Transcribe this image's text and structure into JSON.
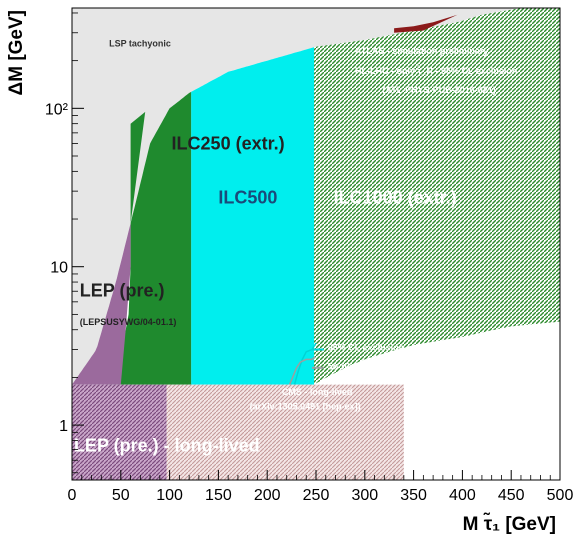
{
  "chart_data": {
    "type": "area",
    "title": "",
    "xlabel": "M τ̃₁ [GeV]",
    "ylabel": "ΔM [GeV]",
    "xscale": "linear",
    "yscale": "log",
    "xlim": [
      0,
      500
    ],
    "ylim": [
      0.45,
      430
    ],
    "x_ticks": [
      0,
      50,
      100,
      150,
      200,
      250,
      300,
      350,
      400,
      450,
      500
    ],
    "y_ticks": [
      {
        "value": 1,
        "label": "1"
      },
      {
        "value": 10,
        "label": "10"
      },
      {
        "value": 100,
        "label": "10²"
      }
    ],
    "kinematic_boundary": [
      [
        0,
        1.8
      ],
      [
        25,
        3.0
      ],
      [
        45,
        8
      ],
      [
        65,
        25
      ],
      [
        80,
        60
      ],
      [
        100,
        100
      ],
      [
        120,
        125
      ],
      [
        160,
        170
      ],
      [
        200,
        200
      ],
      [
        250,
        245
      ],
      [
        300,
        270
      ],
      [
        350,
        310
      ],
      [
        395,
        350
      ],
      [
        420,
        390
      ],
      [
        460,
        430
      ],
      [
        500,
        430
      ]
    ],
    "regions": [
      {
        "label": "LSP tachyonic",
        "sublabel": "",
        "color": "#e6e6e6",
        "pattern": "solid"
      },
      {
        "label": "LEP (pre.)",
        "sublabel": "(LEPSUSYWG/04-01.1)",
        "color": "#9b6a9d",
        "pattern": "solid",
        "x_right": [
          [
            1.8,
            50
          ],
          [
            4,
            55
          ],
          [
            10,
            60
          ],
          [
            40,
            60
          ],
          [
            80,
            60
          ],
          [
            95,
            75
          ]
        ]
      },
      {
        "label": "ILC250 (extr.)",
        "sublabel": "",
        "color": "#1f8a2e",
        "pattern": "solid",
        "x_right": 122,
        "x_left_edge": [
          [
            1.8,
            35
          ],
          [
            2.5,
            50
          ],
          [
            3.2,
            52
          ],
          [
            5,
            58
          ],
          [
            10,
            60
          ],
          [
            40,
            60
          ],
          [
            80,
            60
          ],
          [
            95,
            75
          ]
        ]
      },
      {
        "label": "ILC500",
        "sublabel": "",
        "color": "#00eeee",
        "pattern": "solid",
        "x_left": 122,
        "x_right": 248
      },
      {
        "label": "ILC1000 (extr.)",
        "sublabel": "",
        "color": "#2e8b2e",
        "pattern": "hatched",
        "x_left": 248,
        "x_right": 500,
        "lower_edge": [
          [
            248,
            1.8
          ],
          [
            300,
            2.6
          ],
          [
            350,
            3.2
          ],
          [
            400,
            3.6
          ],
          [
            450,
            4.2
          ],
          [
            500,
            4.5
          ]
        ]
      },
      {
        "label": "ATLAS - simulation preliminary",
        "sublabel": "",
        "color": "#c0392b",
        "pattern": "solid",
        "x_left": 330,
        "x_right": 395,
        "band": [
          [
            330,
            320
          ],
          [
            350,
            330
          ],
          [
            370,
            350
          ],
          [
            395,
            390
          ],
          [
            360,
            310
          ],
          [
            330,
            300
          ]
        ]
      },
      {
        "label": "LEP (pre.) - long-lived",
        "sublabel": "",
        "color": "#9b6a9d",
        "pattern": "hatched",
        "x_left": 0,
        "x_right": 97,
        "y_range": [
          0.45,
          1.8
        ]
      },
      {
        "label": "CMS - long-lived",
        "sublabel": "(arXiv:1305.0491 [hep-ex])",
        "color": "#d8b4b4",
        "pattern": "hatched",
        "x_left": 97,
        "x_right": 340,
        "y_range": [
          0.45,
          1.8
        ]
      }
    ],
    "atlas_lines": [
      "ATLAS - simulation preliminary",
      "HL-LHC - only τ̃_R - 95% CL exclusion",
      "(ATL-PHYS-PUB-2016-021)"
    ],
    "legend": [
      {
        "label": "95% CL exclusion",
        "color": "#00d5d5"
      },
      {
        "label": "5σ discovery",
        "color": "#9aa0a0"
      }
    ],
    "legend_position": "center-right",
    "curves": [
      {
        "name": "95% CL exclusion",
        "color": "#00d5d5",
        "points": [
          [
            228,
            1.8
          ],
          [
            232,
            2.2
          ],
          [
            236,
            2.6
          ],
          [
            240,
            2.9
          ],
          [
            246,
            3.0
          ],
          [
            250,
            3.3
          ]
        ]
      },
      {
        "name": "5σ discovery",
        "color": "#9aa0a0",
        "points": [
          [
            223,
            1.8
          ],
          [
            226,
            2.0
          ],
          [
            230,
            2.3
          ],
          [
            234,
            2.5
          ],
          [
            240,
            2.6
          ],
          [
            246,
            2.6
          ],
          [
            249,
            2.7
          ]
        ]
      }
    ],
    "grid": false
  }
}
